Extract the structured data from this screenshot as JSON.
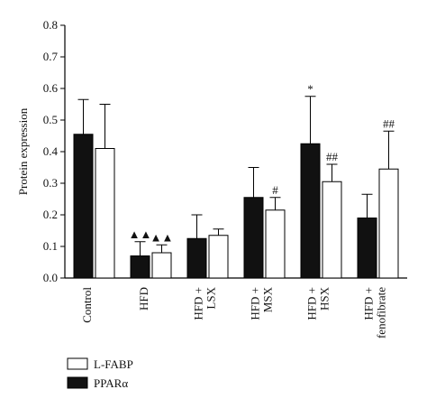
{
  "chart_data": {
    "type": "bar",
    "y_label": "Protein expression",
    "categories": [
      "Control",
      "HFD",
      "HFD + LSX",
      "HFD + MSX",
      "HFD + HSX",
      "HFD + fenofibrate"
    ],
    "series": [
      {
        "name": "PPARα",
        "color": "#111111",
        "values": [
          0.455,
          0.07,
          0.125,
          0.255,
          0.425,
          0.19
        ],
        "errors": [
          0.11,
          0.045,
          0.075,
          0.095,
          0.15,
          0.075
        ],
        "annotations": [
          null,
          "▲▲",
          null,
          null,
          "*",
          null
        ]
      },
      {
        "name": "L-FABP",
        "color": "#ffffff",
        "values": [
          0.41,
          0.08,
          0.135,
          0.215,
          0.305,
          0.345
        ],
        "errors": [
          0.14,
          0.025,
          0.02,
          0.04,
          0.055,
          0.12
        ],
        "annotations": [
          null,
          "▲▲",
          null,
          "#",
          "##",
          "##"
        ]
      }
    ],
    "ylim": [
      0,
      0.8
    ],
    "yticks": [
      {
        "value": 0,
        "label": "0.0"
      },
      0.1,
      0.2,
      0.3,
      0.4,
      0.5,
      0.6,
      0.7,
      0.8
    ]
  }
}
